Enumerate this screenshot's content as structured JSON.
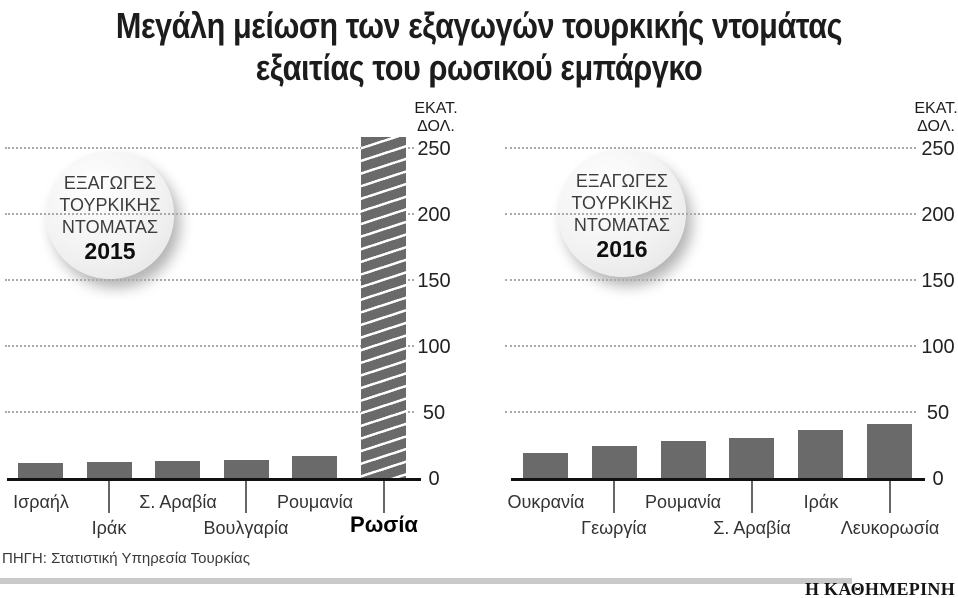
{
  "title": {
    "line1": "Μεγάλη μείωση των εξαγωγών τουρκικής ντομάτας",
    "line2": "εξαιτίας του ρωσικού εμπάργκο"
  },
  "unit_lines": [
    "ΕΚΑΤ.",
    "ΔΟΛ."
  ],
  "source": "ΠΗΓΗ: Στατιστική Υπηρεσία Τουρκίας",
  "logo": "Η ΚΑΘΗΜΕΡΙΝΗ",
  "colors": {
    "bar": "#6a6a6a",
    "axis": "#111111",
    "grid_dots": "#a9a9a9",
    "footer_bar": "#c9c9c9"
  },
  "chart_data": [
    {
      "type": "bar",
      "title_badge": {
        "lines": [
          "ΕΞΑΓΩΓΕΣ",
          "ΤΟΥΡΚΙΚΗΣ",
          "ΝΤΟΜΑΤΑΣ"
        ],
        "year": "2015"
      },
      "categories": [
        "Ισραήλ",
        "Ιράκ",
        "Σ. Αραβία",
        "Βουλγαρία",
        "Ρουμανία",
        "Ρωσία"
      ],
      "values": [
        11,
        12,
        13,
        14,
        17,
        258
      ],
      "ylabel": "ΕΚΑΤ. ΔΟΛ.",
      "yticks": [
        0,
        50,
        100,
        150,
        200,
        250
      ],
      "ylim": [
        0,
        250
      ],
      "grid": true,
      "legend": "none",
      "highlight_category": "Ρωσία",
      "highlight_style": "diagonal-hatch"
    },
    {
      "type": "bar",
      "title_badge": {
        "lines": [
          "ΕΞΑΓΩΓΕΣ",
          "ΤΟΥΡΚΙΚΗΣ",
          "ΝΤΟΜΑΤΑΣ"
        ],
        "year": "2016"
      },
      "categories": [
        "Ουκρανία",
        "Γεωργία",
        "Ρουμανία",
        "Σ. Αραβία",
        "Ιράκ",
        "Λευκορωσία"
      ],
      "values": [
        19,
        24,
        28,
        30,
        36,
        41
      ],
      "ylabel": "ΕΚΑΤ. ΔΟΛ.",
      "yticks": [
        0,
        50,
        100,
        150,
        200,
        250
      ],
      "ylim": [
        0,
        250
      ],
      "grid": true,
      "legend": "none"
    }
  ]
}
